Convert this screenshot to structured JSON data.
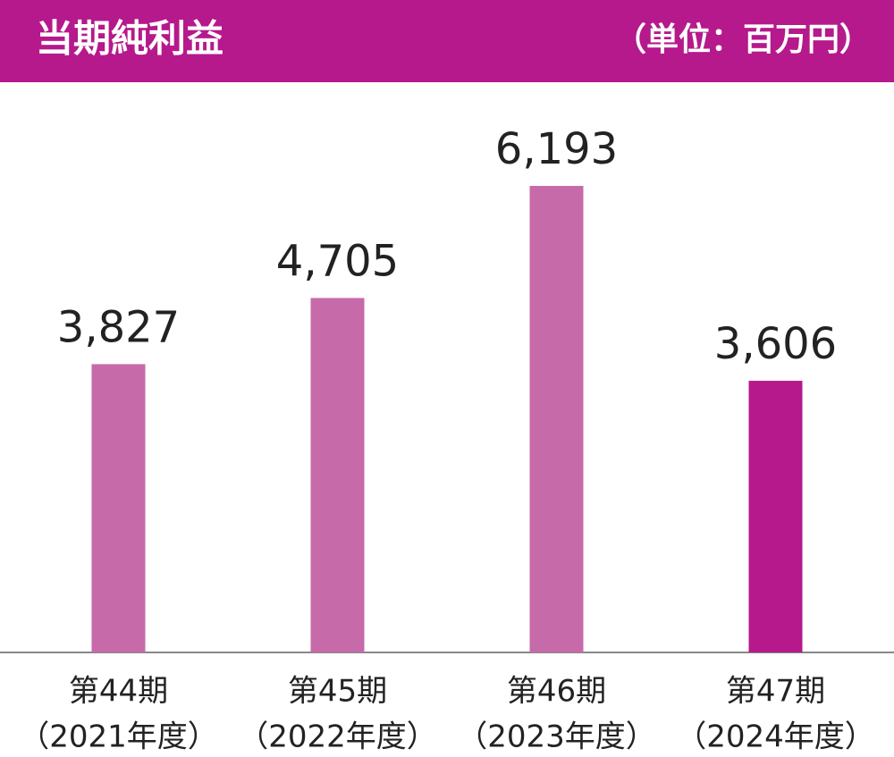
{
  "chart_data": {
    "type": "bar",
    "title": "当期純利益",
    "unit": "（単位：百万円）",
    "categories": [
      "第44期",
      "第45期",
      "第46期",
      "第47期"
    ],
    "category_sublabels": [
      "（2021年度）",
      "（2022年度）",
      "（2023年度）",
      "（2024年度）"
    ],
    "values": [
      3827,
      4705,
      6193,
      3606
    ],
    "value_labels": [
      "3,827",
      "4,705",
      "6,193",
      "3,606"
    ],
    "colors": [
      "#c66aaa",
      "#c66aaa",
      "#c66aaa",
      "#b5198c"
    ],
    "header_color": "#b5198c",
    "ylim": [
      0,
      7000
    ]
  }
}
